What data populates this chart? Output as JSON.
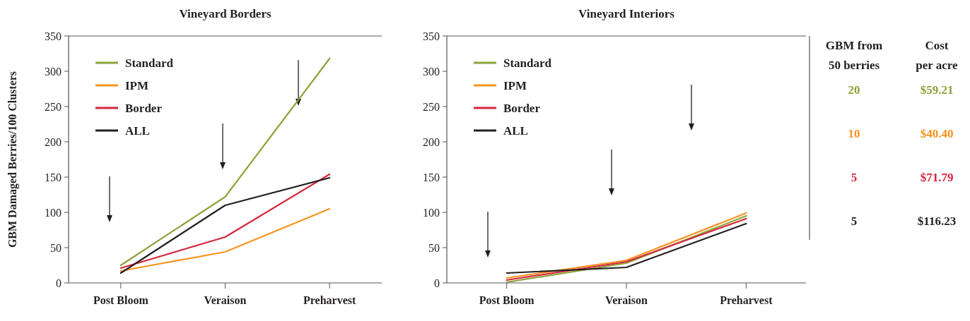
{
  "chart_data": [
    {
      "type": "line",
      "title": "Vineyard Borders",
      "ylabel": "GBM Damaged Berries/100 Clusters",
      "categories": [
        "Post Bloom",
        "Veraison",
        "Preharvest"
      ],
      "ylim": [
        0,
        350
      ],
      "yticks": [
        0,
        50,
        100,
        150,
        200,
        250,
        300,
        350
      ],
      "legend": "top left",
      "grid": false,
      "series": [
        {
          "name": "Standard",
          "color": "#8aa33a",
          "values": [
            25,
            122,
            318
          ]
        },
        {
          "name": "IPM",
          "color": "#f7931e",
          "values": [
            17,
            44,
            105
          ]
        },
        {
          "name": "Border",
          "color": "#d7263d",
          "values": [
            21,
            65,
            154
          ]
        },
        {
          "name": "ALL",
          "color": "#231f20",
          "values": [
            14,
            110,
            149
          ]
        }
      ]
    },
    {
      "type": "line",
      "title": "Vineyard Interiors",
      "categories": [
        "Post Bloom",
        "Veraison",
        "Preharvest"
      ],
      "ylim": [
        0,
        350
      ],
      "yticks": [
        0,
        50,
        100,
        150,
        200,
        250,
        300,
        350
      ],
      "legend": "top left",
      "grid": false,
      "series": [
        {
          "name": "Standard",
          "color": "#8aa33a",
          "values": [
            1,
            28,
            95
          ]
        },
        {
          "name": "IPM",
          "color": "#f7931e",
          "values": [
            7,
            32,
            99
          ]
        },
        {
          "name": "Border",
          "color": "#d7263d",
          "values": [
            4,
            30,
            91
          ]
        },
        {
          "name": "ALL",
          "color": "#231f20",
          "values": [
            14,
            22,
            84
          ]
        }
      ]
    },
    {
      "type": "other",
      "categories": [
        "GBM from 50 berries",
        "Cost per acre"
      ],
      "series": [
        {
          "color": "#8aa33a",
          "values": [
            20,
            59.21
          ],
          "value_labels": [
            "20",
            "$59.21"
          ]
        },
        {
          "color": "#f7931e",
          "values": [
            10,
            40.4
          ],
          "value_labels": [
            "10",
            "$40.40"
          ]
        },
        {
          "color": "#d7263d",
          "values": [
            5,
            71.79
          ],
          "value_labels": [
            "5",
            "$71.79"
          ]
        },
        {
          "color": "#231f20",
          "values": [
            5,
            116.23
          ],
          "value_labels": [
            "5",
            "$116.23"
          ]
        }
      ]
    }
  ]
}
